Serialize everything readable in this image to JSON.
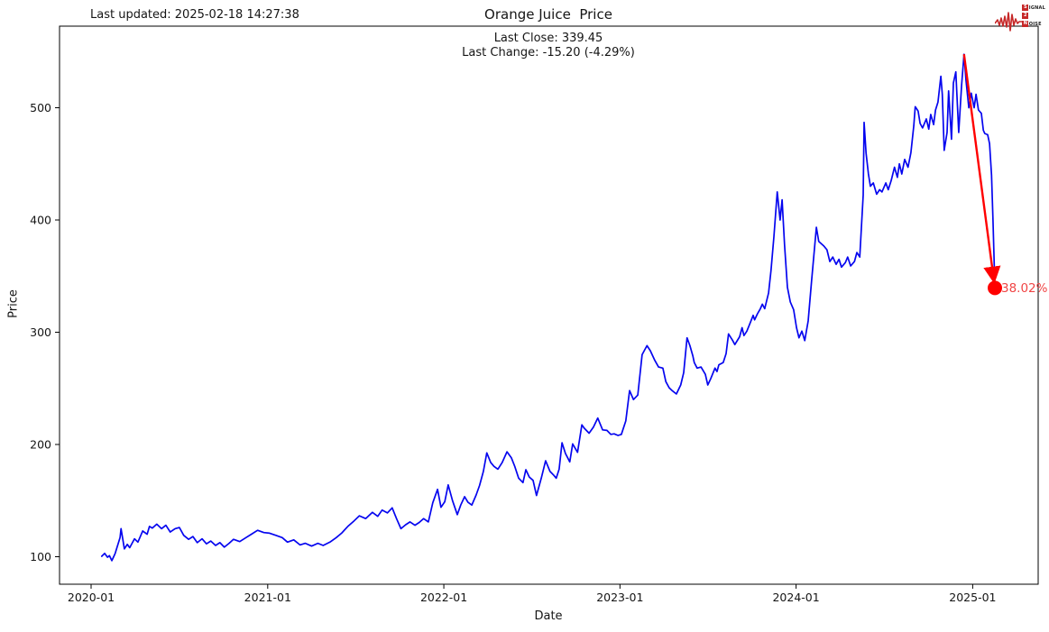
{
  "header": {
    "last_updated": "Last updated: 2025-02-18 14:27:38",
    "title": "Orange Juice  Price",
    "subtitle_line1": "Last Close: 339.45",
    "subtitle_line2": "Last Change: -15.20 (-4.29%)"
  },
  "logo": {
    "rows": [
      {
        "badge": "S",
        "rest": "IGNAL"
      },
      {
        "badge": "2",
        "rest": ""
      },
      {
        "badge": "N",
        "rest": "OISE"
      }
    ],
    "color": "#c62828"
  },
  "chart_data": {
    "type": "line",
    "title": "Orange Juice  Price",
    "xlabel": "Date",
    "ylabel": "Price",
    "x_ticks": [
      "2020-01",
      "2021-01",
      "2022-01",
      "2023-01",
      "2024-01",
      "2025-01"
    ],
    "y_ticks": [
      100,
      200,
      300,
      400,
      500
    ],
    "ylim": [
      72,
      573
    ],
    "grid": false,
    "legend": "none",
    "series_name": "Orange Juice price",
    "series_color": "#0505ef",
    "annotation": {
      "label": "38.02%",
      "text_color": "#f04545",
      "line_color": "#ff0000",
      "from": [
        "2024-12-14",
        547.66
      ],
      "to": [
        "2025-02-16",
        339.45
      ],
      "last_close": 339.45,
      "last_change": -15.2,
      "last_change_pct": -4.29
    },
    "points": [
      [
        "2020-01-23",
        100.4
      ],
      [
        "2020-01-29",
        103
      ],
      [
        "2020-02-04",
        99.5
      ],
      [
        "2020-02-08",
        101
      ],
      [
        "2020-02-13",
        96.5
      ],
      [
        "2020-02-20",
        103
      ],
      [
        "2020-03-01",
        117
      ],
      [
        "2020-03-03",
        125
      ],
      [
        "2020-03-10",
        107
      ],
      [
        "2020-03-16",
        111
      ],
      [
        "2020-03-21",
        108
      ],
      [
        "2020-03-31",
        116
      ],
      [
        "2020-04-07",
        113
      ],
      [
        "2020-04-17",
        123
      ],
      [
        "2020-04-26",
        120
      ],
      [
        "2020-05-01",
        127
      ],
      [
        "2020-05-07",
        125.5
      ],
      [
        "2020-05-16",
        129
      ],
      [
        "2020-05-26",
        125
      ],
      [
        "2020-06-04",
        128
      ],
      [
        "2020-06-13",
        122
      ],
      [
        "2020-06-23",
        125
      ],
      [
        "2020-07-02",
        126
      ],
      [
        "2020-07-11",
        119
      ],
      [
        "2020-07-21",
        115.5
      ],
      [
        "2020-07-30",
        118
      ],
      [
        "2020-08-08",
        112.5
      ],
      [
        "2020-08-18",
        116
      ],
      [
        "2020-08-27",
        111.5
      ],
      [
        "2020-09-05",
        114
      ],
      [
        "2020-09-15",
        110
      ],
      [
        "2020-09-24",
        112.5
      ],
      [
        "2020-10-03",
        108.5
      ],
      [
        "2020-10-13",
        112
      ],
      [
        "2020-10-22",
        115.5
      ],
      [
        "2020-11-04",
        113.5
      ],
      [
        "2020-11-17",
        117
      ],
      [
        "2020-11-28",
        120
      ],
      [
        "2020-12-11",
        123.5
      ],
      [
        "2020-12-24",
        121.5
      ],
      [
        "2021-01-05",
        121
      ],
      [
        "2021-01-18",
        119
      ],
      [
        "2021-01-31",
        117
      ],
      [
        "2021-02-11",
        113
      ],
      [
        "2021-02-24",
        115
      ],
      [
        "2021-03-09",
        110.5
      ],
      [
        "2021-03-20",
        112
      ],
      [
        "2021-04-02",
        109.5
      ],
      [
        "2021-04-15",
        112
      ],
      [
        "2021-04-26",
        110
      ],
      [
        "2021-05-10",
        113
      ],
      [
        "2021-05-23",
        117
      ],
      [
        "2021-06-03",
        121
      ],
      [
        "2021-06-16",
        127
      ],
      [
        "2021-06-29",
        132
      ],
      [
        "2021-07-10",
        136.5
      ],
      [
        "2021-07-23",
        134
      ],
      [
        "2021-08-06",
        139.5
      ],
      [
        "2021-08-17",
        136
      ],
      [
        "2021-08-26",
        141.5
      ],
      [
        "2021-09-06",
        139
      ],
      [
        "2021-09-16",
        143.5
      ],
      [
        "2021-09-25",
        134
      ],
      [
        "2021-10-04",
        125
      ],
      [
        "2021-10-14",
        128.5
      ],
      [
        "2021-10-23",
        131
      ],
      [
        "2021-11-02",
        128
      ],
      [
        "2021-11-11",
        130.5
      ],
      [
        "2021-11-20",
        134
      ],
      [
        "2021-11-30",
        131
      ],
      [
        "2021-12-09",
        148
      ],
      [
        "2021-12-19",
        160
      ],
      [
        "2021-12-26",
        144
      ],
      [
        "2022-01-03",
        149
      ],
      [
        "2022-01-10",
        164
      ],
      [
        "2022-01-19",
        150
      ],
      [
        "2022-01-29",
        137.5
      ],
      [
        "2022-02-05",
        146
      ],
      [
        "2022-02-13",
        153.5
      ],
      [
        "2022-02-20",
        148.5
      ],
      [
        "2022-02-28",
        146
      ],
      [
        "2022-03-09",
        155
      ],
      [
        "2022-03-16",
        163.5
      ],
      [
        "2022-03-24",
        176
      ],
      [
        "2022-03-31",
        192.5
      ],
      [
        "2022-04-08",
        184
      ],
      [
        "2022-04-15",
        180.5
      ],
      [
        "2022-04-23",
        178
      ],
      [
        "2022-05-02",
        184
      ],
      [
        "2022-05-12",
        193.5
      ],
      [
        "2022-05-21",
        188
      ],
      [
        "2022-05-28",
        180.5
      ],
      [
        "2022-06-05",
        170
      ],
      [
        "2022-06-14",
        166
      ],
      [
        "2022-06-20",
        177.5
      ],
      [
        "2022-06-27",
        171
      ],
      [
        "2022-07-05",
        168
      ],
      [
        "2022-07-12",
        154.5
      ],
      [
        "2022-07-22",
        170
      ],
      [
        "2022-07-31",
        185.5
      ],
      [
        "2022-08-09",
        176
      ],
      [
        "2022-08-17",
        172.5
      ],
      [
        "2022-08-22",
        170
      ],
      [
        "2022-08-28",
        178
      ],
      [
        "2022-09-03",
        201.5
      ],
      [
        "2022-09-10",
        192
      ],
      [
        "2022-09-19",
        184.5
      ],
      [
        "2022-09-25",
        200.5
      ],
      [
        "2022-10-05",
        193
      ],
      [
        "2022-10-14",
        217.5
      ],
      [
        "2022-10-19",
        214.5
      ],
      [
        "2022-10-29",
        210
      ],
      [
        "2022-11-07",
        215.5
      ],
      [
        "2022-11-16",
        223.5
      ],
      [
        "2022-11-26",
        213
      ],
      [
        "2022-12-05",
        212.5
      ],
      [
        "2022-12-13",
        209
      ],
      [
        "2022-12-20",
        209.5
      ],
      [
        "2022-12-28",
        208
      ],
      [
        "2023-01-04",
        209
      ],
      [
        "2023-01-13",
        221
      ],
      [
        "2023-01-21",
        248
      ],
      [
        "2023-01-29",
        240
      ],
      [
        "2023-02-07",
        244
      ],
      [
        "2023-02-16",
        280
      ],
      [
        "2023-02-26",
        288
      ],
      [
        "2023-03-05",
        283.5
      ],
      [
        "2023-03-14",
        275
      ],
      [
        "2023-03-22",
        269
      ],
      [
        "2023-03-31",
        268
      ],
      [
        "2023-04-06",
        256
      ],
      [
        "2023-04-13",
        250.5
      ],
      [
        "2023-04-19",
        248
      ],
      [
        "2023-04-28",
        245
      ],
      [
        "2023-05-07",
        253
      ],
      [
        "2023-05-13",
        264
      ],
      [
        "2023-05-20",
        295
      ],
      [
        "2023-05-26",
        288
      ],
      [
        "2023-06-01",
        279
      ],
      [
        "2023-06-04",
        273
      ],
      [
        "2023-06-10",
        268
      ],
      [
        "2023-06-18",
        269
      ],
      [
        "2023-06-27",
        262.5
      ],
      [
        "2023-07-02",
        253
      ],
      [
        "2023-07-08",
        258.5
      ],
      [
        "2023-07-17",
        268
      ],
      [
        "2023-07-21",
        265
      ],
      [
        "2023-07-25",
        271
      ],
      [
        "2023-08-03",
        273
      ],
      [
        "2023-08-09",
        281
      ],
      [
        "2023-08-14",
        298.5
      ],
      [
        "2023-08-22",
        293
      ],
      [
        "2023-08-27",
        289
      ],
      [
        "2023-09-06",
        296
      ],
      [
        "2023-09-11",
        304
      ],
      [
        "2023-09-15",
        297
      ],
      [
        "2023-09-21",
        301
      ],
      [
        "2023-09-28",
        308.5
      ],
      [
        "2023-10-04",
        315
      ],
      [
        "2023-10-07",
        311
      ],
      [
        "2023-10-13",
        316.5
      ],
      [
        "2023-10-19",
        321
      ],
      [
        "2023-10-23",
        325
      ],
      [
        "2023-10-28",
        321
      ],
      [
        "2023-11-05",
        335
      ],
      [
        "2023-11-10",
        355
      ],
      [
        "2023-11-16",
        385
      ],
      [
        "2023-11-23",
        425
      ],
      [
        "2023-11-29",
        400
      ],
      [
        "2023-12-03",
        418
      ],
      [
        "2023-12-08",
        378
      ],
      [
        "2023-12-14",
        340
      ],
      [
        "2023-12-20",
        327
      ],
      [
        "2023-12-27",
        320
      ],
      [
        "2024-01-02",
        304
      ],
      [
        "2024-01-07",
        295
      ],
      [
        "2024-01-13",
        301
      ],
      [
        "2024-01-19",
        292.5
      ],
      [
        "2024-01-26",
        310
      ],
      [
        "2024-02-02",
        345
      ],
      [
        "2024-02-12",
        393.5
      ],
      [
        "2024-02-17",
        381
      ],
      [
        "2024-02-27",
        377
      ],
      [
        "2024-03-05",
        373.5
      ],
      [
        "2024-03-11",
        363
      ],
      [
        "2024-03-17",
        367
      ],
      [
        "2024-03-24",
        360.5
      ],
      [
        "2024-03-30",
        365
      ],
      [
        "2024-04-04",
        358
      ],
      [
        "2024-04-12",
        362
      ],
      [
        "2024-04-17",
        367
      ],
      [
        "2024-04-23",
        359
      ],
      [
        "2024-05-01",
        363
      ],
      [
        "2024-05-06",
        371
      ],
      [
        "2024-05-12",
        367
      ],
      [
        "2024-05-19",
        422
      ],
      [
        "2024-05-21",
        487
      ],
      [
        "2024-05-25",
        459.5
      ],
      [
        "2024-05-30",
        441
      ],
      [
        "2024-06-03",
        430
      ],
      [
        "2024-06-09",
        433
      ],
      [
        "2024-06-16",
        423
      ],
      [
        "2024-06-22",
        427
      ],
      [
        "2024-06-27",
        425
      ],
      [
        "2024-07-05",
        433
      ],
      [
        "2024-07-10",
        427
      ],
      [
        "2024-07-16",
        435
      ],
      [
        "2024-07-23",
        447
      ],
      [
        "2024-07-29",
        438
      ],
      [
        "2024-08-02",
        450
      ],
      [
        "2024-08-07",
        441
      ],
      [
        "2024-08-13",
        454
      ],
      [
        "2024-08-20",
        447
      ],
      [
        "2024-08-26",
        460
      ],
      [
        "2024-09-01",
        484
      ],
      [
        "2024-09-04",
        501
      ],
      [
        "2024-09-10",
        497
      ],
      [
        "2024-09-14",
        486
      ],
      [
        "2024-09-19",
        482
      ],
      [
        "2024-09-27",
        490
      ],
      [
        "2024-10-02",
        481
      ],
      [
        "2024-10-06",
        494
      ],
      [
        "2024-10-12",
        485
      ],
      [
        "2024-10-16",
        498
      ],
      [
        "2024-10-21",
        505
      ],
      [
        "2024-10-27",
        528
      ],
      [
        "2024-10-30",
        512
      ],
      [
        "2024-11-03",
        462
      ],
      [
        "2024-11-09",
        478
      ],
      [
        "2024-11-12",
        515
      ],
      [
        "2024-11-18",
        472
      ],
      [
        "2024-11-22",
        522
      ],
      [
        "2024-11-27",
        532
      ],
      [
        "2024-12-03",
        478
      ],
      [
        "2024-12-09",
        520
      ],
      [
        "2024-12-14",
        547.66
      ],
      [
        "2024-12-18",
        525
      ],
      [
        "2024-12-24",
        500
      ],
      [
        "2024-12-29",
        513
      ],
      [
        "2025-01-04",
        500
      ],
      [
        "2025-01-08",
        512
      ],
      [
        "2025-01-13",
        498
      ],
      [
        "2025-01-19",
        495
      ],
      [
        "2025-01-23",
        480
      ],
      [
        "2025-01-26",
        477
      ],
      [
        "2025-02-01",
        476
      ],
      [
        "2025-02-05",
        468
      ],
      [
        "2025-02-09",
        440
      ],
      [
        "2025-02-12",
        400
      ],
      [
        "2025-02-16",
        339.45
      ]
    ]
  }
}
